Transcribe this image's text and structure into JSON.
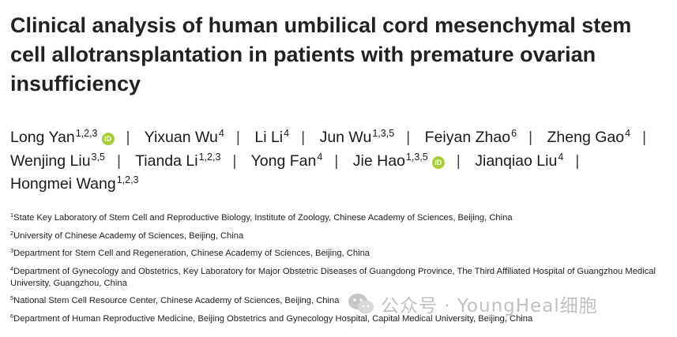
{
  "title": "Clinical analysis of human umbilical cord mesenchymal stem cell allotransplantation in patients with premature ovarian insufficiency",
  "authors": [
    {
      "name": "Long Yan",
      "sup": "1,2,3",
      "orcid": true
    },
    {
      "name": "Yixuan Wu",
      "sup": "4",
      "orcid": false
    },
    {
      "name": "Li Li",
      "sup": "4",
      "orcid": false
    },
    {
      "name": "Jun Wu",
      "sup": "1,3,5",
      "orcid": false
    },
    {
      "name": "Feiyan Zhao",
      "sup": "6",
      "orcid": false
    },
    {
      "name": "Zheng Gao",
      "sup": "4",
      "orcid": false
    },
    {
      "name": "Wenjing Liu",
      "sup": "3,5",
      "orcid": false
    },
    {
      "name": "Tianda Li",
      "sup": "1,2,3",
      "orcid": false
    },
    {
      "name": "Yong Fan",
      "sup": "4",
      "orcid": false
    },
    {
      "name": "Jie Hao",
      "sup": "1,3,5",
      "orcid": true
    },
    {
      "name": "Jianqiao Liu",
      "sup": "4",
      "orcid": false
    },
    {
      "name": "Hongmei Wang",
      "sup": "1,2,3",
      "orcid": false
    }
  ],
  "orcid_label": "iD",
  "separator": "|",
  "affiliations": [
    {
      "num": "1",
      "text": "State Key Laboratory of Stem Cell and Reproductive Biology, Institute of Zoology, Chinese Academy of Sciences, Beijing, China"
    },
    {
      "num": "2",
      "text": "University of Chinese Academy of Sciences, Beijing, China"
    },
    {
      "num": "3",
      "text": "Department for Stem Cell and Regeneration, Chinese Academy of Sciences, Beijing, China"
    },
    {
      "num": "4",
      "text": "Department of Gynecology and Obstetrics, Key Laboratory for Major Obstetric Diseases of Guangdong Province, The Third Affiliated Hospital of Guangzhou Medical University, Guangzhou, China"
    },
    {
      "num": "5",
      "text": "National Stem Cell Resource Center, Chinese Academy of Sciences, Beijing, China"
    },
    {
      "num": "6",
      "text": "Department of Human Reproductive Medicine, Beijing Obstetrics and Gynecology Hospital, Capital Medical University, Beijing, China"
    }
  ],
  "watermark": {
    "text": "公众号 · YoungHeal细胞",
    "icon": "wechat-logo-icon"
  }
}
